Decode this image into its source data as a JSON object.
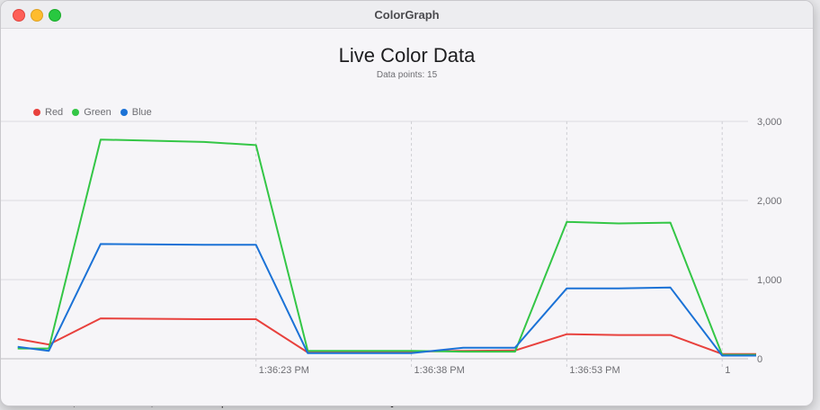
{
  "backdrop": {
    "terminal_line": "\"blue\": 150, \"red\": 122, \"timestamp\": \"2025-07-23T15:36:30Z\"}"
  },
  "window": {
    "title": "ColorGraph",
    "buttons": {
      "close": "close",
      "minimize": "minimize",
      "zoom": "zoom"
    }
  },
  "chart_data": {
    "type": "line",
    "title": "Live Color Data",
    "subtitle": "Data points: 15",
    "legend_position": "top-left",
    "grid": true,
    "ylim": [
      0,
      3000
    ],
    "y_ticks": [
      "3,000",
      "2,000",
      "1,000",
      "0"
    ],
    "y_tick_values": [
      3000,
      2000,
      1000,
      0
    ],
    "x_ticks": [
      "1:36:23 PM",
      "1:36:38 PM",
      "1:36:53 PM",
      "1"
    ],
    "x_tick_values": [
      23,
      38,
      53,
      68
    ],
    "xlim": [
      1.5,
      70.5
    ],
    "x": [
      0,
      3,
      8,
      18,
      23,
      28,
      33,
      38,
      43,
      48,
      53,
      58,
      63,
      68,
      73
    ],
    "series": [
      {
        "name": "Red",
        "color": "#e8413d",
        "values": [
          250,
          180,
          510,
          500,
          500,
          80,
          90,
          90,
          100,
          105,
          310,
          300,
          300,
          60,
          60
        ]
      },
      {
        "name": "Green",
        "color": "#34c646",
        "values": [
          130,
          130,
          2770,
          2740,
          2700,
          100,
          100,
          100,
          90,
          90,
          1730,
          1710,
          1720,
          50,
          50
        ]
      },
      {
        "name": "Blue",
        "color": "#1b72d6",
        "values": [
          150,
          100,
          1450,
          1440,
          1440,
          70,
          70,
          70,
          140,
          140,
          890,
          890,
          900,
          40,
          40
        ]
      }
    ]
  }
}
